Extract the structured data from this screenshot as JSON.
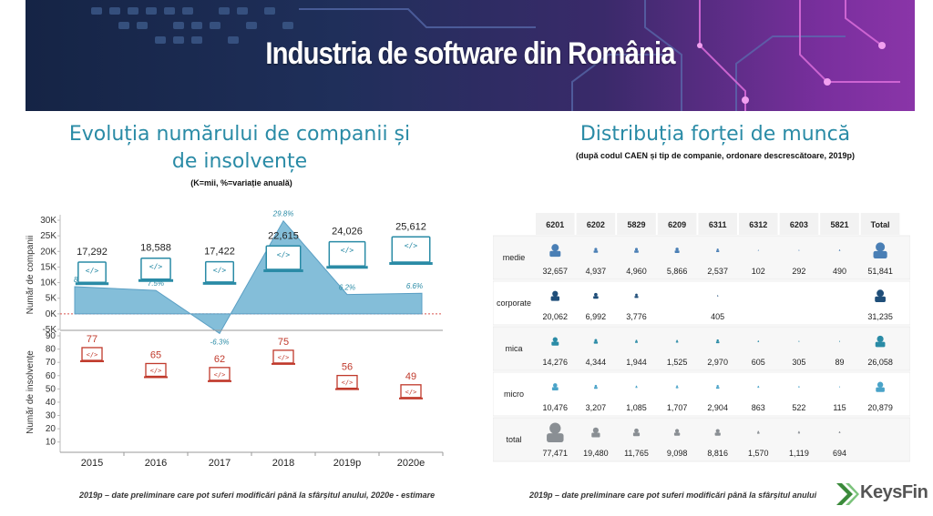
{
  "banner": {
    "title": "Industria de software din România"
  },
  "left_panel": {
    "title_line1": "Evoluția numărului de companii și",
    "title_line2": "de insolvențe",
    "note": "(K=mii,  %=variație anuală)",
    "footnote": "2019p  – date preliminare care pot suferi modificări până la sfârșitul anului, 2020e - estimare"
  },
  "right_panel": {
    "title": "Distribuția forței de muncă",
    "subtitle": "(după codul CAEN și tip de companie, ordonare descrescătoare, 2019p)",
    "footnote": "2019p  – date preliminare care pot suferi modificări până la sfârșitul anului"
  },
  "logo": {
    "text": "KeysFin",
    "color": "#3a8a3a"
  },
  "colors": {
    "accent": "#2a8ba6",
    "insolvency": "#c0392b",
    "area": "#6fb3d2",
    "zero_line": "#d9534f"
  },
  "chart_data": [
    {
      "type": "area",
      "categories": [
        "2015",
        "2016",
        "2017",
        "2018",
        "2019p",
        "2020e"
      ],
      "ylabel": "Număr de companii",
      "yticks": [
        "30K",
        "25K",
        "20K",
        "15K",
        "10K",
        "5K",
        "0K",
        "-5K"
      ],
      "ylim": [
        -5,
        30
      ],
      "companies_labels": [
        "17,292",
        "18,588",
        "17,422",
        "22,615",
        "24,026",
        "25,612"
      ],
      "companies": [
        17292,
        18588,
        17422,
        22615,
        24026,
        25612
      ],
      "variation_labels": [
        "8.7%",
        "7.5%",
        "-6.3%",
        "29.8%",
        "6.2%",
        "6.6%"
      ],
      "variation": [
        8.7,
        7.5,
        -6.3,
        29.8,
        6.2,
        6.6
      ]
    },
    {
      "type": "scatter",
      "categories": [
        "2015",
        "2016",
        "2017",
        "2018",
        "2019p",
        "2020e"
      ],
      "ylabel": "Număr de insolvențe",
      "yticks": [
        "90",
        "80",
        "70",
        "60",
        "50",
        "40",
        "30",
        "20",
        "10"
      ],
      "ylim": [
        0,
        95
      ],
      "values": [
        77,
        65,
        62,
        75,
        56,
        49
      ]
    },
    {
      "type": "table",
      "columns": [
        "6201",
        "6202",
        "5829",
        "6209",
        "6311",
        "6312",
        "6203",
        "5821",
        "Total"
      ],
      "rows": [
        {
          "label": "medie",
          "color": "#4a7fb5",
          "values": [
            "32,657",
            "4,937",
            "4,960",
            "5,866",
            "2,537",
            "102",
            "292",
            "490",
            "51,841"
          ],
          "nums": [
            32657,
            4937,
            4960,
            5866,
            2537,
            102,
            292,
            490,
            51841
          ]
        },
        {
          "label": "corporate",
          "color": "#1f4e79",
          "values": [
            "20,062",
            "6,992",
            "3,776",
            "",
            "405",
            "",
            "",
            "",
            "31,235"
          ],
          "nums": [
            20062,
            6992,
            3776,
            0,
            405,
            0,
            0,
            0,
            31235
          ]
        },
        {
          "label": "mica",
          "color": "#2a8ba6",
          "values": [
            "14,276",
            "4,344",
            "1,944",
            "1,525",
            "2,970",
            "605",
            "305",
            "89",
            "26,058"
          ],
          "nums": [
            14276,
            4344,
            1944,
            1525,
            2970,
            605,
            305,
            89,
            26058
          ]
        },
        {
          "label": "micro",
          "color": "#4aa3c8",
          "values": [
            "10,476",
            "3,207",
            "1,085",
            "1,707",
            "2,904",
            "863",
            "522",
            "115",
            "20,879"
          ],
          "nums": [
            10476,
            3207,
            1085,
            1707,
            2904,
            863,
            522,
            115,
            20879
          ]
        },
        {
          "label": "total",
          "color": "#8a8f94",
          "values": [
            "77,471",
            "19,480",
            "11,765",
            "9,098",
            "8,816",
            "1,570",
            "1,119",
            "694",
            ""
          ],
          "nums": [
            77471,
            19480,
            11765,
            9098,
            8816,
            1570,
            1119,
            694,
            0
          ]
        }
      ]
    }
  ]
}
